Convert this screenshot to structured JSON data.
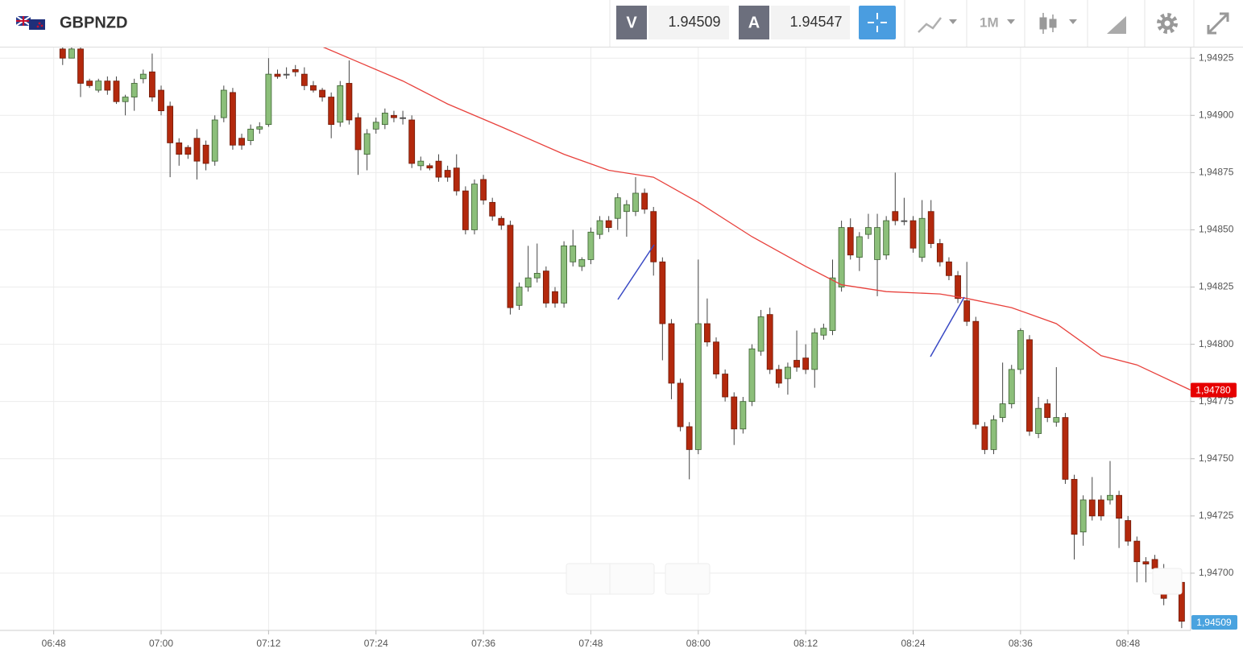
{
  "toolbar": {
    "symbol": "GBPNZD",
    "bid_tag": "V",
    "bid": 1.94509,
    "ask_tag": "A",
    "ask": 1.94547,
    "timeframe": "1M"
  },
  "chart_data": {
    "type": "candlestick",
    "x": [
      "06:49",
      "06:50",
      "06:51",
      "06:52",
      "06:53",
      "06:54",
      "06:55",
      "06:56",
      "06:57",
      "06:58",
      "06:59",
      "07:00",
      "07:01",
      "07:02",
      "07:03",
      "07:04",
      "07:05",
      "07:06",
      "07:07",
      "07:08",
      "07:09",
      "07:10",
      "07:11",
      "07:12",
      "07:13",
      "07:14",
      "07:15",
      "07:16",
      "07:17",
      "07:18",
      "07:19",
      "07:20",
      "07:21",
      "07:22",
      "07:23",
      "07:24",
      "07:25",
      "07:26",
      "07:27",
      "07:28",
      "07:29",
      "07:30",
      "07:31",
      "07:32",
      "07:33",
      "07:34",
      "07:35",
      "07:36",
      "07:37",
      "07:38",
      "07:39",
      "07:40",
      "07:41",
      "07:42",
      "07:43",
      "07:44",
      "07:45",
      "07:46",
      "07:47",
      "07:48",
      "07:49",
      "07:50",
      "07:51",
      "07:52",
      "07:53",
      "07:54",
      "07:55",
      "07:56",
      "07:57",
      "07:58",
      "07:59",
      "08:00",
      "08:01",
      "08:02",
      "08:03",
      "08:04",
      "08:05",
      "08:06",
      "08:07",
      "08:08",
      "08:09",
      "08:10",
      "08:11",
      "08:12",
      "08:13",
      "08:14",
      "08:15",
      "08:16",
      "08:17",
      "08:18",
      "08:19",
      "08:20",
      "08:21",
      "08:22",
      "08:23",
      "08:24",
      "08:25",
      "08:26",
      "08:27",
      "08:28",
      "08:29",
      "08:30",
      "08:31",
      "08:32",
      "08:33",
      "08:34",
      "08:35",
      "08:36",
      "08:37",
      "08:38",
      "08:39",
      "08:40",
      "08:41",
      "08:42",
      "08:43",
      "08:44",
      "08:45",
      "08:46",
      "08:47",
      "08:48",
      "08:49",
      "08:50",
      "08:51",
      "08:52",
      "08:54"
    ],
    "open": [
      1.94929,
      1.94925,
      1.94929,
      1.94915,
      1.94911,
      1.94915,
      1.94915,
      1.94906,
      1.94908,
      1.94916,
      1.94919,
      1.94911,
      1.94904,
      1.94888,
      1.94886,
      1.9489,
      1.94887,
      1.9488,
      1.94899,
      1.9491,
      1.9489,
      1.94889,
      1.94894,
      1.94896,
      1.94918,
      1.94918,
      1.9492,
      1.94918,
      1.94913,
      1.94911,
      1.94908,
      1.94897,
      1.94914,
      1.94899,
      1.94883,
      1.94894,
      1.94896,
      1.949,
      1.94899,
      1.94898,
      1.94878,
      1.94878,
      1.9488,
      1.94876,
      1.94877,
      1.94867,
      1.9485,
      1.94872,
      1.94862,
      1.94855,
      1.94852,
      1.94817,
      1.94825,
      1.94829,
      1.94832,
      1.94823,
      1.94818,
      1.94836,
      1.94834,
      1.94837,
      1.94848,
      1.94854,
      1.94855,
      1.94858,
      1.94858,
      1.94866,
      1.94858,
      1.94836,
      1.94809,
      1.94783,
      1.94764,
      1.94754,
      1.94809,
      1.94801,
      1.94787,
      1.94777,
      1.94763,
      1.94775,
      1.94797,
      1.94813,
      1.94789,
      1.94785,
      1.94793,
      1.94794,
      1.94789,
      1.94804,
      1.94806,
      1.94825,
      1.94851,
      1.94838,
      1.94848,
      1.94837,
      1.94839,
      1.94858,
      1.94854,
      1.94854,
      1.94838,
      1.94858,
      1.94844,
      1.94836,
      1.9483,
      1.94819,
      1.9481,
      1.94764,
      1.94754,
      1.94768,
      1.94774,
      1.94789,
      1.94802,
      1.94761,
      1.94774,
      1.94766,
      1.94768,
      1.94741,
      1.94718,
      1.94732,
      1.94732,
      1.94732,
      1.94734,
      1.94723,
      1.94714,
      1.94705,
      1.94706,
      1.94691,
      1.94696
    ],
    "high": [
      1.9493,
      1.9493,
      1.9493,
      1.94916,
      1.94916,
      1.94917,
      1.94917,
      1.94909,
      1.94916,
      1.9492,
      1.94927,
      1.94913,
      1.94906,
      1.9489,
      1.94887,
      1.94894,
      1.94889,
      1.949,
      1.94913,
      1.94912,
      1.94892,
      1.94896,
      1.94897,
      1.94925,
      1.9492,
      1.94921,
      1.94922,
      1.94921,
      1.94915,
      1.94912,
      1.9491,
      1.94915,
      1.94924,
      1.94901,
      1.94894,
      1.94899,
      1.94903,
      1.94902,
      1.94902,
      1.949,
      1.94882,
      1.94879,
      1.94883,
      1.94878,
      1.94883,
      1.94869,
      1.94872,
      1.94874,
      1.94864,
      1.94856,
      1.94854,
      1.94827,
      1.94843,
      1.94844,
      1.94834,
      1.94825,
      1.94845,
      1.9485,
      1.94838,
      1.94851,
      1.94856,
      1.94856,
      1.94866,
      1.94863,
      1.94873,
      1.94868,
      1.9486,
      1.94838,
      1.94811,
      1.94785,
      1.94766,
      1.94837,
      1.9482,
      1.94803,
      1.94789,
      1.94779,
      1.94777,
      1.948,
      1.94815,
      1.94816,
      1.94791,
      1.94792,
      1.94806,
      1.948,
      1.94807,
      1.94809,
      1.94837,
      1.94854,
      1.94855,
      1.94849,
      1.94857,
      1.94857,
      1.94856,
      1.94875,
      1.94864,
      1.94856,
      1.94863,
      1.94863,
      1.94846,
      1.94838,
      1.94832,
      1.94836,
      1.94812,
      1.94766,
      1.94769,
      1.94792,
      1.94791,
      1.94807,
      1.94804,
      1.94777,
      1.94776,
      1.9479,
      1.9477,
      1.94743,
      1.94734,
      1.94742,
      1.94734,
      1.94749,
      1.94736,
      1.94725,
      1.94716,
      1.94707,
      1.94708,
      1.94704,
      1.94698
    ],
    "low": [
      1.94922,
      1.94925,
      1.94908,
      1.94912,
      1.9491,
      1.94909,
      1.94905,
      1.949,
      1.94902,
      1.94914,
      1.94906,
      1.949,
      1.94873,
      1.94878,
      1.94881,
      1.94872,
      1.94876,
      1.94878,
      1.94897,
      1.94885,
      1.94885,
      1.94887,
      1.94892,
      1.94895,
      1.94916,
      1.94916,
      1.94917,
      1.94911,
      1.9491,
      1.94906,
      1.9489,
      1.94895,
      1.94896,
      1.94874,
      1.94876,
      1.94892,
      1.94894,
      1.94897,
      1.94896,
      1.94877,
      1.94876,
      1.94876,
      1.94871,
      1.94871,
      1.94865,
      1.94848,
      1.94848,
      1.94861,
      1.94854,
      1.9485,
      1.94813,
      1.94815,
      1.94823,
      1.94827,
      1.94816,
      1.94816,
      1.94816,
      1.94834,
      1.94832,
      1.94835,
      1.94846,
      1.94849,
      1.9485,
      1.94847,
      1.94856,
      1.94857,
      1.9483,
      1.94793,
      1.94776,
      1.94762,
      1.94741,
      1.94752,
      1.94799,
      1.94785,
      1.94775,
      1.94756,
      1.94761,
      1.94773,
      1.94795,
      1.94787,
      1.94781,
      1.94778,
      1.94788,
      1.94787,
      1.94781,
      1.94802,
      1.94804,
      1.94823,
      1.94837,
      1.94832,
      1.94846,
      1.94821,
      1.94837,
      1.94852,
      1.94852,
      1.9484,
      1.94836,
      1.94842,
      1.94834,
      1.94828,
      1.94818,
      1.94808,
      1.94763,
      1.94752,
      1.94752,
      1.94766,
      1.94772,
      1.94787,
      1.9476,
      1.94759,
      1.94766,
      1.94764,
      1.94739,
      1.94706,
      1.94712,
      1.94723,
      1.94723,
      1.9473,
      1.94711,
      1.94712,
      1.94696,
      1.94696,
      1.947,
      1.94686,
      1.94676
    ],
    "close": [
      1.94925,
      1.94929,
      1.94914,
      1.94913,
      1.94915,
      1.94911,
      1.94906,
      1.94908,
      1.94914,
      1.94918,
      1.94908,
      1.94902,
      1.94888,
      1.94883,
      1.94883,
      1.9488,
      1.94879,
      1.94898,
      1.94911,
      1.94887,
      1.94887,
      1.94894,
      1.94895,
      1.94918,
      1.94917,
      1.94918,
      1.94919,
      1.94913,
      1.94911,
      1.94908,
      1.94896,
      1.94913,
      1.94898,
      1.94885,
      1.94892,
      1.94897,
      1.94901,
      1.94899,
      1.94899,
      1.94879,
      1.9488,
      1.94877,
      1.94873,
      1.94873,
      1.94867,
      1.9485,
      1.9487,
      1.94863,
      1.94856,
      1.94852,
      1.94816,
      1.94825,
      1.94829,
      1.94831,
      1.94818,
      1.94818,
      1.94843,
      1.94843,
      1.94837,
      1.94849,
      1.94854,
      1.94851,
      1.94864,
      1.94861,
      1.94866,
      1.94859,
      1.94836,
      1.94809,
      1.94783,
      1.94764,
      1.94754,
      1.94809,
      1.94801,
      1.94787,
      1.94777,
      1.94763,
      1.94775,
      1.94798,
      1.94812,
      1.94789,
      1.94783,
      1.9479,
      1.9479,
      1.94789,
      1.94805,
      1.94807,
      1.94829,
      1.94851,
      1.94839,
      1.94847,
      1.94851,
      1.94851,
      1.94854,
      1.94854,
      1.94854,
      1.94842,
      1.94855,
      1.94844,
      1.94836,
      1.9483,
      1.9482,
      1.9481,
      1.94765,
      1.94754,
      1.94767,
      1.94774,
      1.94789,
      1.94806,
      1.94762,
      1.94772,
      1.94768,
      1.94768,
      1.94741,
      1.94717,
      1.94732,
      1.94725,
      1.94725,
      1.94734,
      1.94724,
      1.94714,
      1.94705,
      1.94704,
      1.94702,
      1.94689,
      1.94679
    ],
    "up_color": "#8cbf7a",
    "down_color": "#b3290d",
    "overlays": [
      {
        "type": "line",
        "color": "#e8413c",
        "x": [
          "07:18",
          "07:21",
          "07:27",
          "07:32",
          "07:38",
          "07:45",
          "07:50",
          "07:55",
          "08:00",
          "08:06",
          "08:12",
          "08:16",
          "08:21",
          "08:27",
          "08:30",
          "08:35",
          "08:40",
          "08:45",
          "08:49",
          "08:55"
        ],
        "values": [
          1.9493,
          1.94925,
          1.94915,
          1.94905,
          1.94895,
          1.94883,
          1.94876,
          1.94873,
          1.94862,
          1.94847,
          1.94834,
          1.94826,
          1.94823,
          1.94822,
          1.9482,
          1.94816,
          1.94809,
          1.94795,
          1.94791,
          1.9478
        ]
      }
    ],
    "price_badge": {
      "value": 1.9478,
      "label": "1,94780",
      "color": "#e60000"
    },
    "bid_badge": {
      "label": "1,94509",
      "color": "#4aa3df"
    },
    "xlim": [
      "06:42",
      "08:55"
    ],
    "xticks": [
      "06:48",
      "07:00",
      "07:12",
      "07:24",
      "07:36",
      "07:48",
      "08:00",
      "08:12",
      "08:24",
      "08:36",
      "08:48"
    ],
    "ylim": [
      1.94675,
      1.9493
    ],
    "yticks": [
      {
        "value": 1.947,
        "label": "1,94700"
      },
      {
        "value": 1.94725,
        "label": "1,94725"
      },
      {
        "value": 1.9475,
        "label": "1,94750"
      },
      {
        "value": 1.94775,
        "label": "1,94775"
      },
      {
        "value": 1.948,
        "label": "1,94800"
      },
      {
        "value": 1.94825,
        "label": "1,94825"
      },
      {
        "value": 1.9485,
        "label": "1,94850"
      },
      {
        "value": 1.94875,
        "label": "1,94875"
      },
      {
        "value": 1.949,
        "label": "1,94900"
      },
      {
        "value": 1.94925,
        "label": "1,94925"
      }
    ],
    "grid": true
  }
}
